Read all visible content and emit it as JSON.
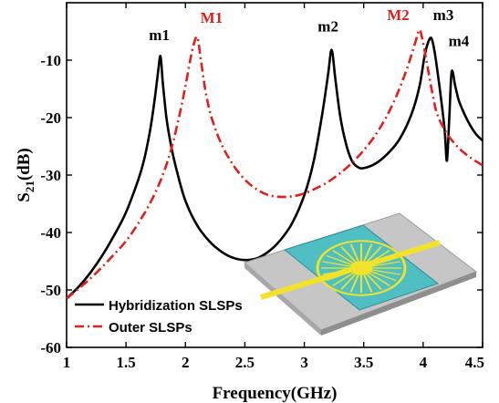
{
  "chart_data": {
    "type": "line",
    "xlabel": "Frequency(GHz)",
    "ylabel_main": "S",
    "ylabel_sub": "21",
    "ylabel_unit": "(dB)",
    "xlim": [
      1,
      4.5
    ],
    "ylim": [
      -60,
      0
    ],
    "xticks": [
      "1",
      "1.5",
      "2",
      "2.5",
      "3",
      "3.5",
      "4",
      "4.5"
    ],
    "yticks": [
      "-10",
      "-20",
      "-30",
      "-40",
      "-50",
      "-60"
    ],
    "grid": false,
    "legend_position": "bottom-left",
    "series": [
      {
        "name": "Hybridization SLSPs",
        "color": "#000000",
        "style": "solid",
        "x": [
          1.0,
          1.1,
          1.2,
          1.3,
          1.4,
          1.5,
          1.6,
          1.65,
          1.7,
          1.74,
          1.77,
          1.79,
          1.81,
          1.84,
          1.88,
          1.93,
          2.0,
          2.1,
          2.2,
          2.3,
          2.4,
          2.5,
          2.6,
          2.7,
          2.8,
          2.9,
          3.0,
          3.08,
          3.15,
          3.2,
          3.23,
          3.26,
          3.3,
          3.35,
          3.4,
          3.45,
          3.5,
          3.6,
          3.7,
          3.8,
          3.9,
          3.97,
          4.01,
          4.04,
          4.07,
          4.1,
          4.14,
          4.18,
          4.2,
          4.22,
          4.24,
          4.27,
          4.3,
          4.35,
          4.4,
          4.45,
          4.5
        ],
        "y": [
          -51.5,
          -49.5,
          -47,
          -44,
          -40.5,
          -36.5,
          -31,
          -27.5,
          -22.5,
          -17,
          -12,
          -9.3,
          -14,
          -20,
          -25,
          -29.5,
          -34.5,
          -38.8,
          -41.5,
          -43.3,
          -44.4,
          -44.8,
          -44.5,
          -43.3,
          -41.3,
          -38.3,
          -33.5,
          -27.5,
          -19.5,
          -12.5,
          -8.2,
          -13,
          -19.5,
          -24.5,
          -27.5,
          -28.6,
          -28.8,
          -28,
          -26.3,
          -23.8,
          -19.5,
          -14.5,
          -9.5,
          -7,
          -6.2,
          -9,
          -15,
          -22,
          -27.5,
          -20,
          -12,
          -14.5,
          -17,
          -19.5,
          -21.5,
          -23,
          -24
        ]
      },
      {
        "name": "Outer SLSPs",
        "color": "#e0201b",
        "style": "dashdot",
        "x": [
          1.0,
          1.1,
          1.2,
          1.3,
          1.4,
          1.5,
          1.6,
          1.7,
          1.8,
          1.88,
          1.95,
          2.0,
          2.04,
          2.07,
          2.1,
          2.13,
          2.17,
          2.22,
          2.3,
          2.4,
          2.5,
          2.6,
          2.7,
          2.8,
          2.9,
          3.0,
          3.1,
          3.2,
          3.3,
          3.4,
          3.5,
          3.6,
          3.7,
          3.78,
          3.85,
          3.9,
          3.94,
          3.97,
          4.0,
          4.04,
          4.08,
          4.12,
          4.2,
          4.3,
          4.4,
          4.5
        ],
        "y": [
          -51.5,
          -49.8,
          -48,
          -46,
          -43.8,
          -41.5,
          -38.5,
          -35,
          -30.5,
          -25.5,
          -19.5,
          -14.5,
          -10,
          -7.2,
          -6,
          -10,
          -15.5,
          -20,
          -24.5,
          -28.2,
          -30.8,
          -32.5,
          -33.5,
          -33.8,
          -33.7,
          -33.2,
          -32.3,
          -31.2,
          -29.7,
          -27.9,
          -25.7,
          -23,
          -19.5,
          -16,
          -12.3,
          -9.2,
          -6.5,
          -4.7,
          -7,
          -11.5,
          -16,
          -19.5,
          -22.8,
          -25.3,
          -27,
          -28.3
        ]
      }
    ],
    "annotations": [
      {
        "text": "m1",
        "x": 1.78,
        "y": -6.5,
        "color": "#000000"
      },
      {
        "text": "M1",
        "x": 2.22,
        "y": -3.5,
        "color": "#e0201b"
      },
      {
        "text": "m2",
        "x": 3.2,
        "y": -5.0,
        "color": "#000000"
      },
      {
        "text": "M2",
        "x": 3.79,
        "y": -3.0,
        "color": "#e0201b"
      },
      {
        "text": "m3",
        "x": 4.17,
        "y": -3.0,
        "color": "#000000"
      },
      {
        "text": "m4",
        "x": 4.3,
        "y": -7.5,
        "color": "#000000"
      }
    ]
  }
}
